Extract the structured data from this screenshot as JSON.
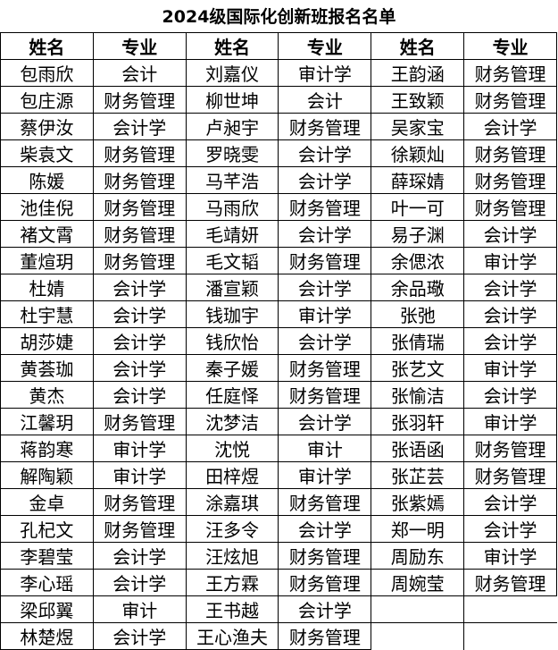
{
  "title": "2024级国际化创新班报名名单",
  "table": {
    "header": [
      "姓名",
      "专业",
      "姓名",
      "专业",
      "姓名",
      "专业"
    ],
    "rows": [
      [
        "包雨欣",
        "会计",
        "刘嘉仪",
        "审计学",
        "王韵涵",
        "财务管理"
      ],
      [
        "包庄源",
        "财务管理",
        "柳世坤",
        "会计",
        "王致颖",
        "财务管理"
      ],
      [
        "蔡伊汝",
        "会计学",
        "卢昶宇",
        "财务管理",
        "吴家宝",
        "会计学"
      ],
      [
        "柴袁文",
        "财务管理",
        "罗晓雯",
        "会计学",
        "徐颖灿",
        "财务管理"
      ],
      [
        "陈媛",
        "财务管理",
        "马芊浩",
        "会计学",
        "薛琛婧",
        "财务管理"
      ],
      [
        "池佳倪",
        "财务管理",
        "马雨欣",
        "财务管理",
        "叶一可",
        "财务管理"
      ],
      [
        "褚文霄",
        "财务管理",
        "毛靖妍",
        "会计学",
        "易子渊",
        "会计学"
      ],
      [
        "董煊玥",
        "财务管理",
        "毛文韬",
        "财务管理",
        "余偲浓",
        "审计学"
      ],
      [
        "杜婧",
        "会计学",
        "潘宣颖",
        "会计学",
        "余品璥",
        "会计学"
      ],
      [
        "杜宇慧",
        "会计学",
        "钱珈宇",
        "审计学",
        "张弛",
        "会计学"
      ],
      [
        "胡莎婕",
        "会计学",
        "钱欣怡",
        "会计学",
        "张倩瑞",
        "会计学"
      ],
      [
        "黄荟珈",
        "会计学",
        "秦子媛",
        "财务管理",
        "张艺文",
        "审计学"
      ],
      [
        "黄杰",
        "会计学",
        "任庭怿",
        "财务管理",
        "张愉洁",
        "会计学"
      ],
      [
        "江馨玥",
        "财务管理",
        "沈梦洁",
        "会计学",
        "张羽轩",
        "审计学"
      ],
      [
        "蒋韵寒",
        "审计学",
        "沈悦",
        "审计",
        "张语函",
        "财务管理"
      ],
      [
        "解陶颖",
        "审计学",
        "田梓煜",
        "审计学",
        "张芷芸",
        "财务管理"
      ],
      [
        "金卓",
        "财务管理",
        "涂嘉琪",
        "财务管理",
        "张紫嫣",
        "会计学"
      ],
      [
        "孔杞文",
        "财务管理",
        "汪多令",
        "会计学",
        "郑一明",
        "会计学"
      ],
      [
        "李碧莹",
        "会计学",
        "汪炫旭",
        "财务管理",
        "周励东",
        "审计学"
      ],
      [
        "李心瑶",
        "会计学",
        "王方霖",
        "财务管理",
        "周婉莹",
        "财务管理"
      ],
      [
        "梁邱翼",
        "审计",
        "王书越",
        "会计学"
      ],
      [
        "林楚煜",
        "会计学",
        "王心渔夫",
        "财务管理"
      ]
    ]
  }
}
